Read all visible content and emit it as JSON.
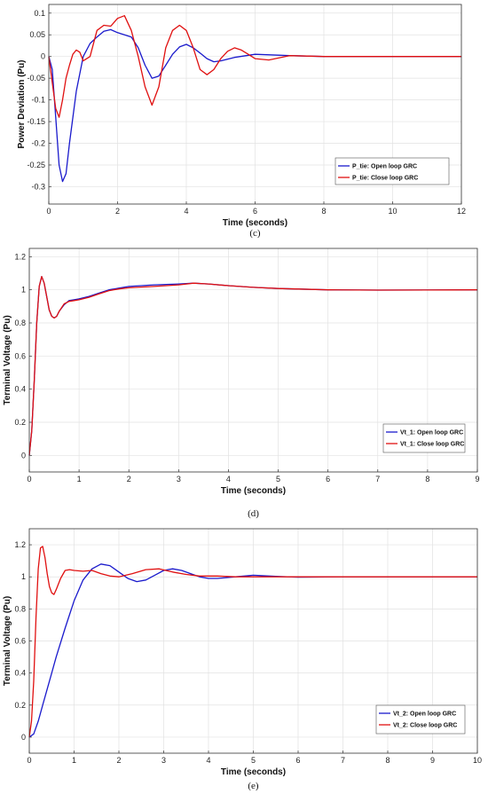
{
  "chart_data": [
    {
      "type": "line",
      "caption": "(c)",
      "xlabel": "Time (seconds)",
      "ylabel": "Power Deviation (Pu)",
      "xlim": [
        0,
        12
      ],
      "ylim": [
        -0.34,
        0.12
      ],
      "xticks": [
        "0",
        "2",
        "4",
        "6",
        "8",
        "10",
        "12"
      ],
      "yticks": [
        "0.1",
        "0.05",
        "0",
        "-0.05",
        "-0.1",
        "-0.15",
        "-0.2",
        "-0.25",
        "-0.3"
      ],
      "grid": true,
      "legend_position": "lower-right",
      "series": [
        {
          "name": "P_tie: Open loop GRC",
          "color": "#1a1acc",
          "x": [
            0,
            0.1,
            0.2,
            0.3,
            0.4,
            0.5,
            0.6,
            0.8,
            1.0,
            1.2,
            1.4,
            1.6,
            1.8,
            2.0,
            2.2,
            2.4,
            2.6,
            2.8,
            3.0,
            3.2,
            3.4,
            3.6,
            3.8,
            4.0,
            4.2,
            4.4,
            4.6,
            4.8,
            5.0,
            5.4,
            6.0,
            7.0,
            8.0,
            10.0,
            12.0
          ],
          "y": [
            0,
            -0.03,
            -0.14,
            -0.25,
            -0.288,
            -0.27,
            -0.2,
            -0.08,
            0.0,
            0.03,
            0.045,
            0.058,
            0.062,
            0.055,
            0.05,
            0.045,
            0.02,
            -0.02,
            -0.05,
            -0.045,
            -0.02,
            0.005,
            0.022,
            0.028,
            0.02,
            0.008,
            -0.005,
            -0.012,
            -0.01,
            -0.002,
            0.005,
            0.002,
            0.0,
            0.0,
            0.0
          ]
        },
        {
          "name": "P_tie: Close loop GRC",
          "color": "#e01010",
          "x": [
            0,
            0.1,
            0.2,
            0.3,
            0.4,
            0.5,
            0.6,
            0.7,
            0.8,
            0.9,
            1.0,
            1.2,
            1.4,
            1.6,
            1.8,
            2.0,
            2.2,
            2.4,
            2.6,
            2.8,
            3.0,
            3.2,
            3.4,
            3.6,
            3.8,
            4.0,
            4.2,
            4.4,
            4.6,
            4.8,
            5.0,
            5.2,
            5.4,
            5.6,
            5.8,
            6.0,
            6.4,
            7.0,
            8.0,
            10.0,
            12.0
          ],
          "y": [
            0,
            -0.06,
            -0.12,
            -0.14,
            -0.1,
            -0.05,
            -0.02,
            0.005,
            0.015,
            0.01,
            -0.01,
            0.0,
            0.06,
            0.072,
            0.07,
            0.088,
            0.094,
            0.06,
            0.0,
            -0.07,
            -0.112,
            -0.07,
            0.02,
            0.06,
            0.072,
            0.06,
            0.02,
            -0.03,
            -0.042,
            -0.03,
            -0.005,
            0.012,
            0.02,
            0.015,
            0.005,
            -0.005,
            -0.008,
            0.002,
            0.0,
            0.0,
            0.0
          ]
        }
      ]
    },
    {
      "type": "line",
      "caption": "(d)",
      "xlabel": "Time (seconds)",
      "ylabel": "Terminal Voltage (Pu)",
      "xlim": [
        0,
        9
      ],
      "ylim": [
        -0.1,
        1.25
      ],
      "xticks": [
        "0",
        "1",
        "2",
        "3",
        "4",
        "5",
        "6",
        "7",
        "8",
        "9"
      ],
      "yticks": [
        "1.2",
        "1",
        "0.8",
        "0.6",
        "0.4",
        "0.2",
        "0"
      ],
      "grid": true,
      "legend_position": "lower-right",
      "series": [
        {
          "name": "Vt_1: Open loop GRC",
          "color": "#1a1acc",
          "x": [
            0,
            0.05,
            0.1,
            0.15,
            0.2,
            0.25,
            0.3,
            0.35,
            0.4,
            0.45,
            0.5,
            0.55,
            0.6,
            0.7,
            0.8,
            0.9,
            1.0,
            1.2,
            1.4,
            1.6,
            1.8,
            2.0,
            2.5,
            3.0,
            3.3,
            3.6,
            4.0,
            4.5,
            5.0,
            6.0,
            7.0,
            8.0,
            9.0
          ],
          "y": [
            0,
            0.15,
            0.45,
            0.8,
            1.02,
            1.08,
            1.04,
            0.96,
            0.88,
            0.84,
            0.83,
            0.84,
            0.87,
            0.91,
            0.935,
            0.94,
            0.945,
            0.96,
            0.98,
            1.0,
            1.01,
            1.02,
            1.03,
            1.035,
            1.04,
            1.035,
            1.025,
            1.015,
            1.008,
            1.0,
            0.998,
            0.999,
            1.0
          ]
        },
        {
          "name": "Vt_1: Close loop GRC",
          "color": "#e01010",
          "x": [
            0,
            0.05,
            0.1,
            0.15,
            0.2,
            0.25,
            0.3,
            0.35,
            0.4,
            0.45,
            0.5,
            0.55,
            0.6,
            0.7,
            0.8,
            0.9,
            1.0,
            1.2,
            1.4,
            1.6,
            1.8,
            2.0,
            2.5,
            3.0,
            3.3,
            3.6,
            4.0,
            4.5,
            5.0,
            6.0,
            7.0,
            8.0,
            9.0
          ],
          "y": [
            0,
            0.15,
            0.45,
            0.8,
            1.02,
            1.08,
            1.04,
            0.96,
            0.88,
            0.84,
            0.83,
            0.84,
            0.87,
            0.915,
            0.93,
            0.935,
            0.94,
            0.955,
            0.975,
            0.995,
            1.005,
            1.012,
            1.02,
            1.03,
            1.04,
            1.035,
            1.025,
            1.015,
            1.008,
            1.0,
            0.998,
            0.999,
            1.0
          ]
        }
      ]
    },
    {
      "type": "line",
      "caption": "(e)",
      "xlabel": "Time (seconds)",
      "ylabel": "Terminal Voltage (Pu)",
      "xlim": [
        0,
        10
      ],
      "ylim": [
        -0.1,
        1.3
      ],
      "xticks": [
        "0",
        "1",
        "2",
        "3",
        "4",
        "5",
        "6",
        "7",
        "8",
        "9",
        "10"
      ],
      "yticks": [
        "1.2",
        "1",
        "0.8",
        "0.6",
        "0.4",
        "0.2",
        "0"
      ],
      "grid": true,
      "legend_position": "lower-right",
      "series": [
        {
          "name": "Vt_2: Open loop GRC",
          "color": "#1a1acc",
          "x": [
            0,
            0.1,
            0.2,
            0.3,
            0.4,
            0.5,
            0.6,
            0.8,
            1.0,
            1.2,
            1.4,
            1.6,
            1.8,
            2.0,
            2.2,
            2.4,
            2.6,
            2.8,
            3.0,
            3.2,
            3.4,
            3.6,
            3.8,
            4.0,
            4.2,
            4.4,
            4.6,
            4.8,
            5.0,
            5.5,
            6.0,
            7.0,
            8.0,
            9.0,
            10.0
          ],
          "y": [
            0,
            0.02,
            0.1,
            0.2,
            0.3,
            0.4,
            0.5,
            0.68,
            0.85,
            0.98,
            1.05,
            1.08,
            1.07,
            1.03,
            0.99,
            0.97,
            0.98,
            1.01,
            1.04,
            1.05,
            1.04,
            1.02,
            1.0,
            0.99,
            0.99,
            0.995,
            1.0,
            1.005,
            1.01,
            1.003,
            0.998,
            1.0,
            1.0,
            1.0,
            1.0
          ]
        },
        {
          "name": "Vt_2: Close loop GRC",
          "color": "#e01010",
          "x": [
            0,
            0.05,
            0.1,
            0.15,
            0.2,
            0.25,
            0.3,
            0.35,
            0.4,
            0.45,
            0.5,
            0.55,
            0.6,
            0.7,
            0.8,
            0.9,
            1.0,
            1.2,
            1.4,
            1.6,
            1.8,
            2.0,
            2.3,
            2.6,
            2.9,
            3.2,
            3.5,
            3.8,
            4.2,
            4.6,
            5.0,
            6.0,
            7.0,
            8.0,
            10.0
          ],
          "y": [
            0,
            0.1,
            0.35,
            0.75,
            1.05,
            1.18,
            1.19,
            1.12,
            1.02,
            0.94,
            0.9,
            0.89,
            0.92,
            0.99,
            1.04,
            1.045,
            1.04,
            1.035,
            1.04,
            1.02,
            1.005,
            1.0,
            1.02,
            1.045,
            1.05,
            1.03,
            1.015,
            1.005,
            1.005,
            1.0,
            1.0,
            1.0,
            1.0,
            1.0,
            1.0
          ]
        }
      ]
    }
  ]
}
